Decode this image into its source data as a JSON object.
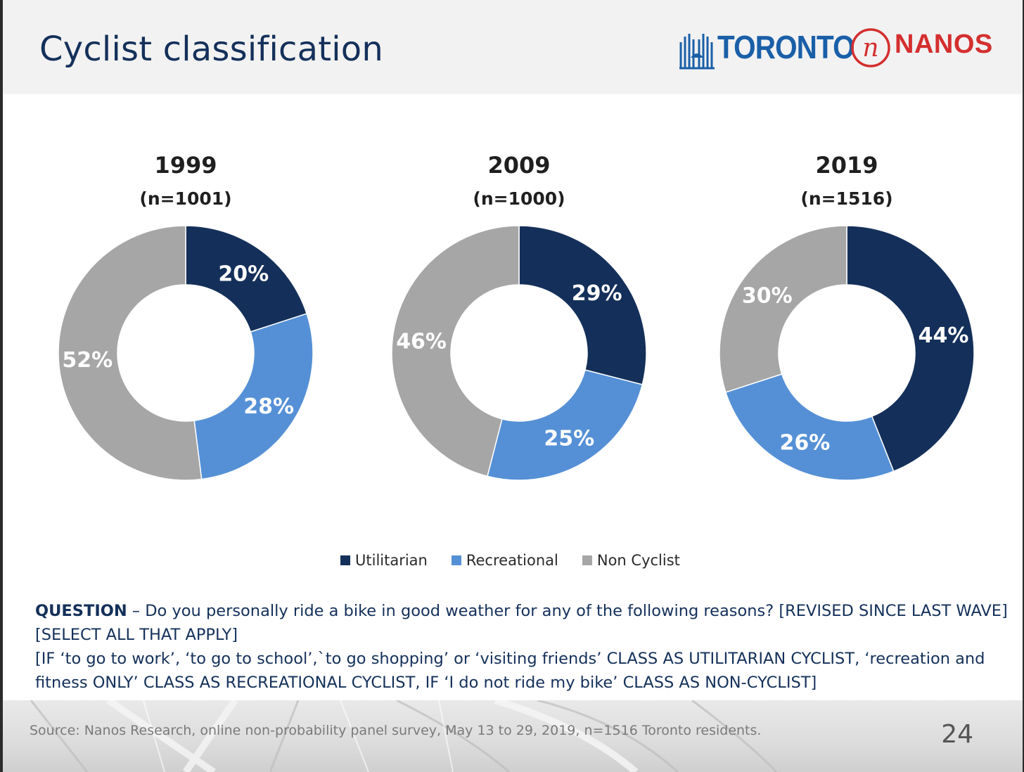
{
  "header": {
    "title": "Cyclist classification"
  },
  "logos": {
    "toronto": "TORONTO",
    "nanos": "NANOS",
    "nanos_mark": "n"
  },
  "chart_data": [
    {
      "type": "pie",
      "variant": "donut",
      "title": "1999",
      "subtitle": "(n=1001)",
      "categories": [
        "Utilitarian",
        "Recreational",
        "Non Cyclist"
      ],
      "values": [
        20,
        28,
        52
      ],
      "labels": [
        "20%",
        "28%",
        "52%"
      ]
    },
    {
      "type": "pie",
      "variant": "donut",
      "title": "2009",
      "subtitle": "(n=1000)",
      "categories": [
        "Utilitarian",
        "Recreational",
        "Non Cyclist"
      ],
      "values": [
        29,
        25,
        46
      ],
      "labels": [
        "29%",
        "25%",
        "46%"
      ]
    },
    {
      "type": "pie",
      "variant": "donut",
      "title": "2019",
      "subtitle": "(n=1516)",
      "categories": [
        "Utilitarian",
        "Recreational",
        "Non Cyclist"
      ],
      "values": [
        44,
        26,
        30
      ],
      "labels": [
        "44%",
        "26%",
        "30%"
      ]
    }
  ],
  "colors": {
    "Utilitarian": "#14305a",
    "Recreational": "#5590d6",
    "Non Cyclist": "#a6a6a6"
  },
  "legend": {
    "placement": "bottom-center",
    "items": [
      {
        "label": "Utilitarian",
        "color": "#14305a"
      },
      {
        "label": "Recreational",
        "color": "#5590d6"
      },
      {
        "label": "Non Cyclist",
        "color": "#a6a6a6"
      }
    ]
  },
  "question": {
    "label": "QUESTION",
    "line1": " – Do you personally ride a bike in good weather for any of the following reasons? [REVISED SINCE LAST WAVE] [SELECT ALL THAT APPLY]",
    "line2": "[IF ‘to go to work’, ‘to go to school’,`to go shopping’ or ‘visiting friends’ CLASS AS UTILITARIAN CYCLIST, ‘recreation and fitness ONLY’ CLASS AS RECREATIONAL CYCLIST, IF ‘I do not ride my bike’ CLASS AS NON-CYCLIST]"
  },
  "footer": {
    "source": "Source: Nanos Research, online non-probability panel survey, May 13 to 29, 2019, n=1516 Toronto residents.",
    "page": "24"
  }
}
